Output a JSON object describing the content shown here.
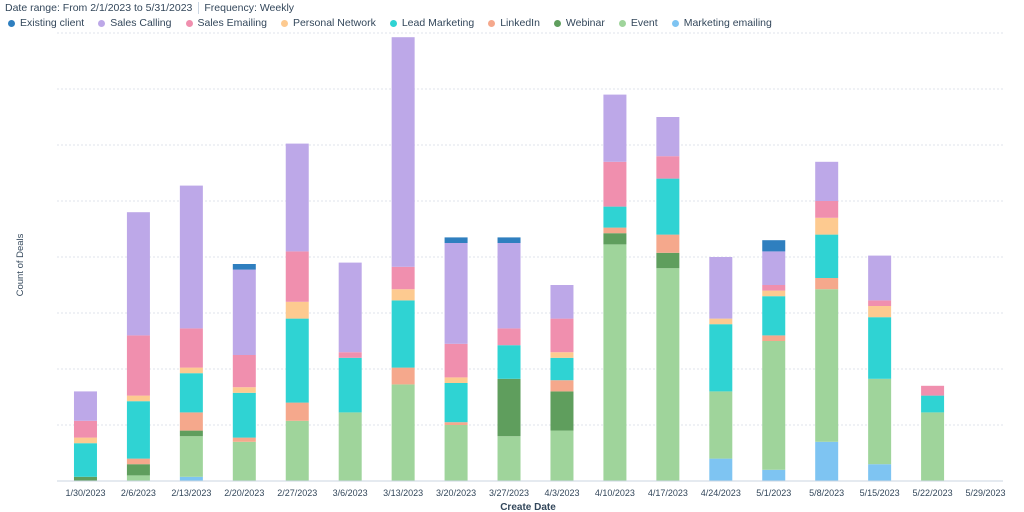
{
  "header": {
    "date_range": "Date range: From 2/1/2023 to 5/31/2023",
    "frequency": "Frequency: Weekly"
  },
  "chart_data": {
    "type": "bar",
    "stacked": true,
    "xlabel": "Create Date",
    "ylabel": "Count of Deals",
    "ylim": [
      0,
      16
    ],
    "grid": true,
    "legend_position": "top-left",
    "categories": [
      "1/30/2023",
      "2/6/2023",
      "2/13/2023",
      "2/20/2023",
      "2/27/2023",
      "3/6/2023",
      "3/13/2023",
      "3/20/2023",
      "3/27/2023",
      "4/3/2023",
      "4/10/2023",
      "4/17/2023",
      "4/24/2023",
      "5/1/2023",
      "5/8/2023",
      "5/15/2023",
      "5/22/2023",
      "5/29/2023"
    ],
    "series": [
      {
        "name": "Marketing emailing",
        "color": "#7ec4f2",
        "values": [
          0,
          0,
          0.15,
          0,
          0,
          0,
          0,
          0,
          0,
          0,
          0,
          0,
          0.8,
          0.4,
          1.4,
          0.6,
          0,
          0
        ]
      },
      {
        "name": "Event",
        "color": "#9fd49b",
        "values": [
          0,
          0.2,
          1.45,
          1.4,
          2.15,
          2.45,
          3.45,
          2,
          1.6,
          1.8,
          8.45,
          7.6,
          2.4,
          4.6,
          5.45,
          3.05,
          2.45,
          0
        ]
      },
      {
        "name": "Webinar",
        "color": "#5f9e5d",
        "values": [
          0.15,
          0.4,
          0.2,
          0,
          0,
          0,
          0,
          0,
          2.05,
          1.4,
          0.4,
          0.55,
          0,
          0,
          0,
          0,
          0,
          0
        ]
      },
      {
        "name": "LinkedIn",
        "color": "#f5a88c",
        "values": [
          0,
          0.2,
          0.65,
          0.15,
          0.65,
          0,
          0.6,
          0.1,
          0,
          0.4,
          0.2,
          0.65,
          0,
          0.2,
          0.4,
          0,
          0,
          0
        ]
      },
      {
        "name": "Lead Marketing",
        "color": "#2fd3d3",
        "values": [
          1.2,
          2.05,
          1.4,
          1.6,
          3.0,
          1.95,
          2.4,
          1.4,
          1.2,
          0.8,
          0.75,
          2.0,
          2.4,
          1.4,
          1.55,
          2.2,
          0.6,
          0
        ]
      },
      {
        "name": "Personal Network",
        "color": "#fdca90",
        "values": [
          0.2,
          0.2,
          0.2,
          0.2,
          0.6,
          0,
          0.4,
          0.2,
          0,
          0.2,
          0,
          0,
          0.2,
          0.2,
          0.6,
          0.4,
          0,
          0
        ]
      },
      {
        "name": "Sales Emailing",
        "color": "#f08fae",
        "values": [
          0.6,
          2.15,
          1.4,
          1.15,
          1.8,
          0.2,
          0.8,
          1.2,
          0.6,
          1.2,
          1.6,
          0.8,
          0,
          0.2,
          0.6,
          0.2,
          0.35,
          0
        ]
      },
      {
        "name": "Sales Calling",
        "color": "#bda8e8",
        "values": [
          1.05,
          4.4,
          5.1,
          3.05,
          3.85,
          3.2,
          8.2,
          3.6,
          3.05,
          1.2,
          2.4,
          1.4,
          2.2,
          1.2,
          1.4,
          1.6,
          0,
          0
        ]
      },
      {
        "name": "Existing client",
        "color": "#2f7fbf",
        "values": [
          0,
          0,
          0,
          0.2,
          0,
          0,
          0,
          0.2,
          0.2,
          0,
          0,
          0,
          0,
          0.4,
          0,
          0,
          0,
          0
        ]
      }
    ],
    "legend_order": [
      "Existing client",
      "Sales Calling",
      "Sales Emailing",
      "Personal Network",
      "Lead Marketing",
      "LinkedIn",
      "Webinar",
      "Event",
      "Marketing emailing"
    ]
  }
}
